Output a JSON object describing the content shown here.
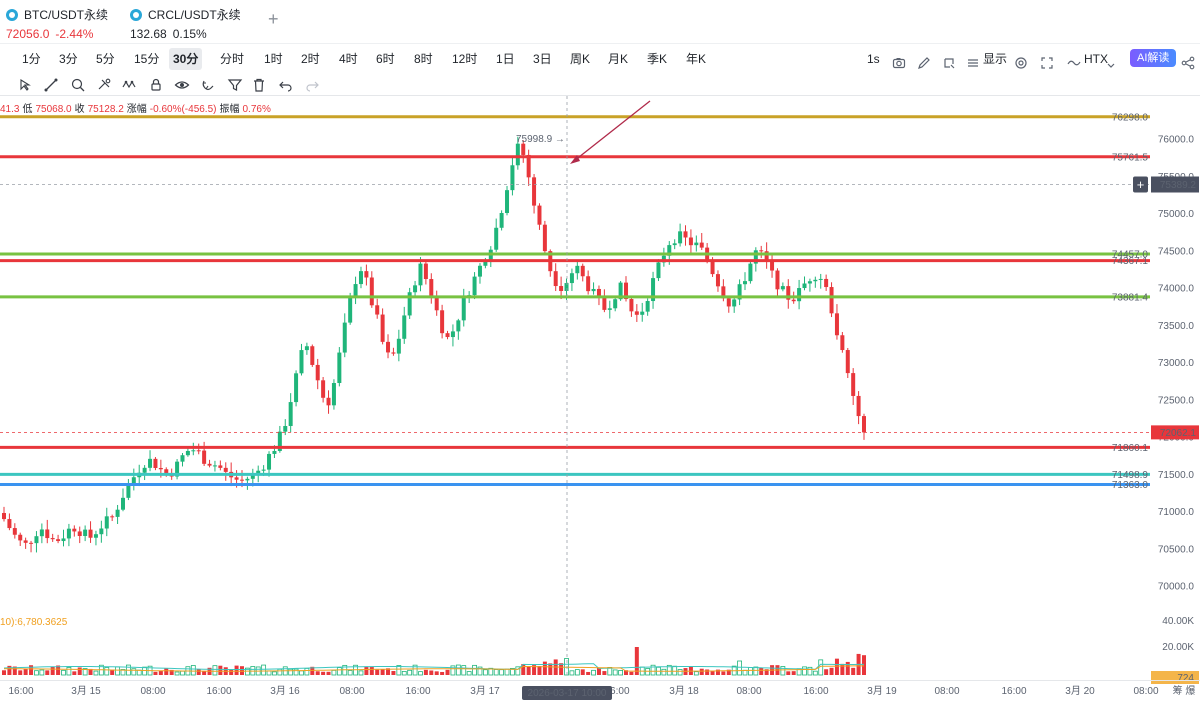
{
  "tickers": [
    {
      "name": "BTC/USDT永续",
      "price": "72056.0",
      "change": "-2.44%",
      "negative": true
    },
    {
      "name": "CRCL/USDT永续",
      "price": "132.68",
      "change": "0.15%",
      "negative": false
    }
  ],
  "timeframes": [
    "1分",
    "3分",
    "5分",
    "15分",
    "30分",
    "分时",
    "1时",
    "2时",
    "4时",
    "6时",
    "8时",
    "12时",
    "1日",
    "3日",
    "周K",
    "月K",
    "季K",
    "年K"
  ],
  "active_timeframe": "30分",
  "toolbar_right": {
    "interval": "1s",
    "display_label": "显示",
    "exchange": "HTX",
    "ai_label": "AI解读"
  },
  "ohlc_info": {
    "open_partial": "41.3",
    "low_label": "低",
    "low": "75068.0",
    "close_label": "收",
    "close": "75128.2",
    "change_label": "涨幅",
    "change": "-0.60%(-456.5)",
    "amp_label": "振幅",
    "amp": "0.76%"
  },
  "volume_label": "10):6,780.3625",
  "colors": {
    "up": "#1fb57a",
    "down": "#e8363b",
    "gold": "#c9a227",
    "green_line": "#78c241",
    "red_line": "#e8363b",
    "teal_line": "#3cc6c0",
    "blue_line": "#3a93f0"
  },
  "chart_data": {
    "type": "candlestick",
    "price_ticks": [
      "76000.0",
      "75500.0",
      "75000.0",
      "74500.0",
      "74000.0",
      "73500.0",
      "73000.0",
      "72500.0",
      "72000.0",
      "71500.0",
      "71000.0",
      "70500.0",
      "70000.0"
    ],
    "price_tick_values": [
      76000,
      75500,
      75000,
      74500,
      74000,
      73500,
      73000,
      72500,
      72000,
      71500,
      71000,
      70500,
      70000
    ],
    "volume_ticks": [
      "40.00K",
      "20.00K"
    ],
    "x_ticks": [
      "16:00",
      "3月 15",
      "08:00",
      "16:00",
      "3月 16",
      "08:00",
      "16:00",
      "3月 17",
      "08:00",
      "16:00",
      "3月 18",
      "08:00",
      "16:00",
      "3月 19",
      "08:00",
      "16:00",
      "3月 20",
      "08:00"
    ],
    "x_corner": "筹 爆",
    "high_marker": {
      "label": "75998.9",
      "value": 75998.9
    },
    "crosshair": {
      "price": "75389.2",
      "price_value": 75389.2,
      "time": "2026-03-17 10:00"
    },
    "current_price": {
      "label": "72062.1",
      "value": 72062.1
    },
    "last_volume": "724",
    "levels": [
      {
        "label": "76298.0",
        "value": 76298.0,
        "color": "gold"
      },
      {
        "label": "75761.5",
        "value": 75761.5,
        "color": "red"
      },
      {
        "label": "74457.0",
        "value": 74457.0,
        "color": "green"
      },
      {
        "label": "74367.1",
        "value": 74367.1,
        "color": "red"
      },
      {
        "label": "73881.4",
        "value": 73881.4,
        "color": "green"
      },
      {
        "label": "71860.1",
        "value": 71860.1,
        "color": "red"
      },
      {
        "label": "71498.9",
        "value": 71498.9,
        "color": "teal"
      },
      {
        "label": "71363.0",
        "value": 71363.0,
        "color": "blue"
      }
    ],
    "close_path": [
      70900,
      70750,
      70600,
      70550,
      70650,
      70800,
      70700,
      70600,
      70650,
      70750,
      70800,
      70700,
      70650,
      70750,
      70850,
      70900,
      71100,
      71300,
      71450,
      71600,
      71700,
      71650,
      71550,
      71500,
      71600,
      71750,
      71850,
      71800,
      71700,
      71650,
      71600,
      71500,
      71450,
      71400,
      71450,
      71500,
      71600,
      71750,
      71900,
      72100,
      72500,
      72900,
      73300,
      73000,
      72700,
      72400,
      72700,
      73200,
      73700,
      74100,
      74300,
      73900,
      73600,
      73200,
      73000,
      73300,
      73700,
      74000,
      74300,
      74100,
      73800,
      73500,
      73300,
      73500,
      73800,
      74000,
      74200,
      74400,
      74600,
      74900,
      75300,
      75700,
      75950,
      75600,
      75100,
      74700,
      74300,
      74100,
      74000,
      74200,
      74250,
      74100,
      73950,
      73800,
      73700,
      73900,
      74000,
      73800,
      73600,
      73700,
      73950,
      74200,
      74450,
      74650,
      74700,
      74650,
      74600,
      74550,
      74400,
      74200,
      74000,
      73800,
      73850,
      74050,
      74300,
      74500,
      74400,
      74200,
      74050,
      73900,
      73850,
      73950,
      74100,
      74200,
      74150,
      73900,
      73500,
      73100,
      72700,
      72350,
      72062
    ]
  }
}
